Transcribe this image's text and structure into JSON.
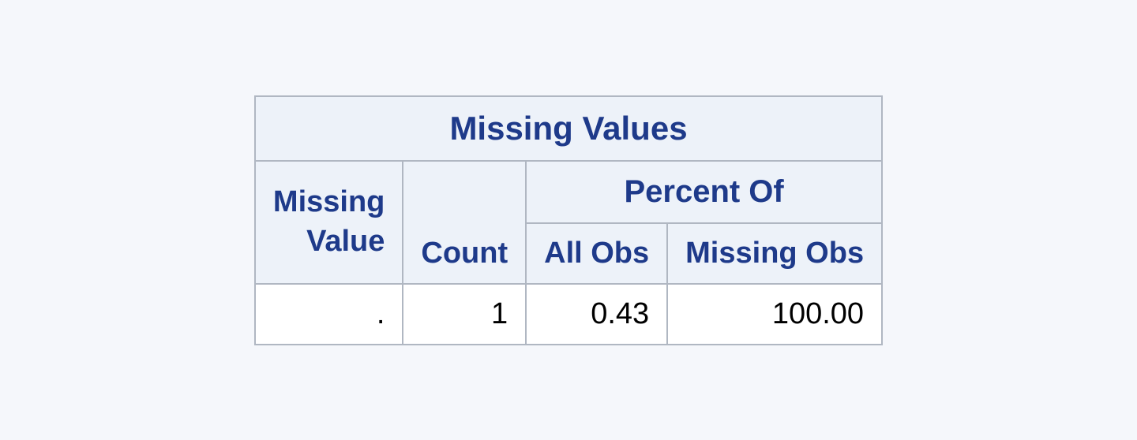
{
  "table": {
    "type": "table",
    "title": "Missing Values",
    "percent_group_label": "Percent Of",
    "columns": {
      "missing_value": "Missing Value",
      "count": "Count",
      "all_obs": "All Obs",
      "missing_obs": "Missing Obs"
    },
    "rows": [
      {
        "missing_value": ".",
        "count": "1",
        "all_obs": "0.43",
        "missing_obs": "100.00"
      }
    ],
    "styling": {
      "header_bg": "#edf2f9",
      "header_text_color": "#1e3a8a",
      "border_color": "#b0b7c2",
      "data_bg": "#ffffff",
      "data_text_color": "#000000",
      "page_bg": "#f5f7fb",
      "header_fontsize": 38,
      "data_fontsize": 38,
      "title_fontsize": 42,
      "font_family": "Arial, Helvetica, sans-serif",
      "border_width": 2,
      "column_alignment": [
        "right",
        "right",
        "right",
        "right"
      ]
    }
  }
}
